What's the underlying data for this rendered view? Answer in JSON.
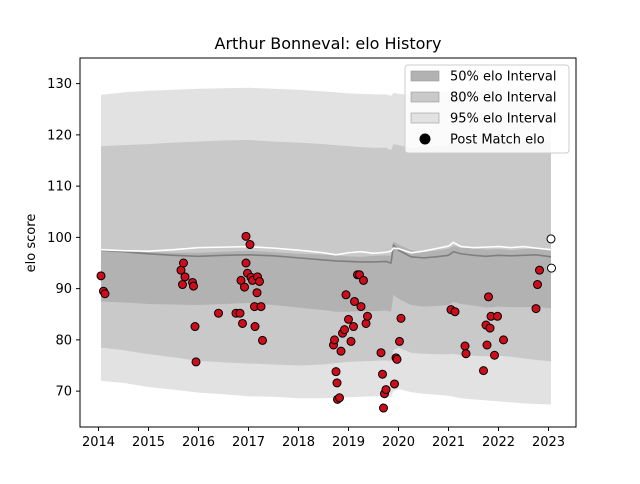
{
  "chart_data": {
    "type": "scatter",
    "title": "Arthur Bonneval: elo History",
    "xlabel": "",
    "ylabel": "elo score",
    "xlim": [
      2013.63,
      2023.55
    ],
    "ylim": [
      63,
      135
    ],
    "x_ticks": [
      2014,
      2015,
      2016,
      2017,
      2018,
      2019,
      2020,
      2021,
      2022,
      2023
    ],
    "y_ticks": [
      70,
      80,
      90,
      100,
      110,
      120,
      130
    ],
    "legend_position": "upper right",
    "grid": false,
    "colors": {
      "band50": "#b2b2b2",
      "band80": "#c9c9c9",
      "band95": "#e2e2e2",
      "pre_line": "#7f7f7f",
      "post_line": "#ffffff",
      "points": "#cc0e1b",
      "future_points": "#ffffff"
    },
    "legend": [
      {
        "label": "50% elo Interval",
        "kind": "band",
        "color_key": "band50"
      },
      {
        "label": "80% elo Interval",
        "kind": "band",
        "color_key": "band80"
      },
      {
        "label": "95% elo Interval",
        "kind": "band",
        "color_key": "band95"
      },
      {
        "label": "Post Match elo",
        "kind": "marker",
        "color_key": "points"
      }
    ],
    "line_x": [
      2014.05,
      2014.5,
      2015.0,
      2015.5,
      2016.0,
      2016.5,
      2017.0,
      2017.5,
      2018.0,
      2018.5,
      2018.75,
      2019.0,
      2019.25,
      2019.5,
      2019.75,
      2019.85,
      2019.9,
      2020.0,
      2020.25,
      2020.5,
      2020.75,
      2021.0,
      2021.1,
      2021.25,
      2021.5,
      2021.75,
      2022.0,
      2022.25,
      2022.5,
      2022.75,
      2023.05
    ],
    "pre_elo": [
      97.5,
      97.2,
      96.8,
      96.5,
      96.3,
      96.5,
      96.6,
      96.4,
      96.0,
      95.6,
      95.4,
      95.3,
      95.2,
      95.2,
      95.3,
      95.0,
      98.5,
      97.5,
      96.2,
      96.0,
      96.2,
      96.5,
      97.2,
      96.8,
      96.5,
      96.3,
      96.5,
      96.4,
      96.5,
      96.6,
      96.2
    ],
    "post_elo": [
      97.6,
      97.4,
      97.3,
      97.6,
      98.0,
      98.1,
      98.2,
      97.9,
      97.5,
      97.0,
      96.6,
      97.0,
      97.2,
      96.9,
      97.1,
      97.3,
      97.9,
      97.8,
      97.0,
      97.3,
      97.8,
      98.3,
      99.0,
      98.2,
      98.0,
      98.1,
      98.2,
      98.0,
      98.2,
      97.9,
      97.6
    ],
    "band50_upper": [
      97.7,
      97.4,
      97.2,
      97.0,
      97.0,
      97.2,
      97.4,
      97.1,
      96.8,
      96.6,
      96.5,
      96.3,
      96.2,
      96.4,
      96.5,
      96.4,
      99.2,
      98.6,
      97.5,
      97.2,
      97.4,
      97.8,
      98.3,
      98.0,
      97.8,
      97.6,
      97.7,
      97.5,
      97.7,
      97.8,
      97.5
    ],
    "band50_lower": [
      87.5,
      87.3,
      87.0,
      86.9,
      86.8,
      87.0,
      87.2,
      86.8,
      86.3,
      85.8,
      85.5,
      85.5,
      85.6,
      85.6,
      85.7,
      85.5,
      88.8,
      88.0,
      86.8,
      86.5,
      86.6,
      86.8,
      87.4,
      87.0,
      86.7,
      86.3,
      86.5,
      86.4,
      86.4,
      86.4,
      86.2
    ],
    "band80_upper": [
      117.8,
      118.0,
      118.2,
      118.5,
      118.7,
      118.9,
      119.0,
      118.7,
      118.5,
      118.2,
      118.0,
      117.8,
      117.6,
      117.5,
      117.5,
      117.0,
      118.2,
      118.0,
      117.5,
      117.6,
      117.8,
      118.1,
      118.5,
      118.2,
      118.3,
      118.5,
      118.6,
      118.7,
      118.8,
      119.0,
      118.8
    ],
    "band80_lower": [
      78.5,
      78.0,
      77.2,
      76.6,
      75.9,
      75.6,
      75.4,
      75.2,
      75.0,
      75.2,
      75.5,
      75.7,
      75.8,
      75.9,
      76.0,
      75.9,
      78.0,
      78.5,
      77.5,
      77.3,
      77.2,
      77.2,
      77.3,
      77.0,
      76.9,
      76.8,
      76.9,
      76.7,
      76.4,
      76.1,
      75.8
    ],
    "band95_upper": [
      127.8,
      128.3,
      128.6,
      128.8,
      129.0,
      129.1,
      129.2,
      129.0,
      128.8,
      128.5,
      128.3,
      128.1,
      128.0,
      127.9,
      127.9,
      127.6,
      128.2,
      128.0,
      127.8,
      127.9,
      128.1,
      128.4,
      128.7,
      128.5,
      128.6,
      128.7,
      128.8,
      128.9,
      129.0,
      129.2,
      129.0
    ],
    "band95_lower": [
      72.0,
      71.6,
      70.8,
      70.3,
      69.7,
      69.4,
      69.0,
      68.9,
      68.6,
      68.6,
      68.7,
      68.8,
      68.9,
      69.0,
      69.0,
      68.9,
      70.0,
      70.4,
      69.8,
      69.5,
      69.3,
      69.1,
      68.9,
      68.6,
      68.4,
      68.2,
      68.0,
      67.8,
      67.6,
      67.5,
      67.4
    ],
    "points": [
      {
        "x": 2014.05,
        "y": 92.5
      },
      {
        "x": 2014.1,
        "y": 89.5
      },
      {
        "x": 2014.13,
        "y": 89.0
      },
      {
        "x": 2015.65,
        "y": 93.6
      },
      {
        "x": 2015.68,
        "y": 90.8
      },
      {
        "x": 2015.7,
        "y": 95.0
      },
      {
        "x": 2015.73,
        "y": 92.3
      },
      {
        "x": 2015.88,
        "y": 91.2
      },
      {
        "x": 2015.9,
        "y": 90.5
      },
      {
        "x": 2015.93,
        "y": 82.6
      },
      {
        "x": 2015.95,
        "y": 75.7
      },
      {
        "x": 2016.4,
        "y": 85.2
      },
      {
        "x": 2016.75,
        "y": 85.2
      },
      {
        "x": 2016.83,
        "y": 85.2
      },
      {
        "x": 2016.85,
        "y": 91.6
      },
      {
        "x": 2016.88,
        "y": 83.2
      },
      {
        "x": 2016.92,
        "y": 90.3
      },
      {
        "x": 2016.95,
        "y": 95.0
      },
      {
        "x": 2016.95,
        "y": 100.2
      },
      {
        "x": 2016.98,
        "y": 93.0
      },
      {
        "x": 2017.03,
        "y": 98.6
      },
      {
        "x": 2017.05,
        "y": 92.2
      },
      {
        "x": 2017.08,
        "y": 91.6
      },
      {
        "x": 2017.12,
        "y": 86.5
      },
      {
        "x": 2017.13,
        "y": 82.6
      },
      {
        "x": 2017.17,
        "y": 89.2
      },
      {
        "x": 2017.18,
        "y": 92.3
      },
      {
        "x": 2017.22,
        "y": 91.4
      },
      {
        "x": 2017.25,
        "y": 86.5
      },
      {
        "x": 2017.28,
        "y": 79.9
      },
      {
        "x": 2018.7,
        "y": 79.0
      },
      {
        "x": 2018.72,
        "y": 80.0
      },
      {
        "x": 2018.75,
        "y": 73.8
      },
      {
        "x": 2018.77,
        "y": 71.6
      },
      {
        "x": 2018.78,
        "y": 68.4
      },
      {
        "x": 2018.82,
        "y": 68.7
      },
      {
        "x": 2018.85,
        "y": 77.8
      },
      {
        "x": 2018.88,
        "y": 81.3
      },
      {
        "x": 2018.92,
        "y": 82.0
      },
      {
        "x": 2018.95,
        "y": 88.8
      },
      {
        "x": 2019.0,
        "y": 84.0
      },
      {
        "x": 2019.05,
        "y": 79.7
      },
      {
        "x": 2019.1,
        "y": 82.6
      },
      {
        "x": 2019.12,
        "y": 87.5
      },
      {
        "x": 2019.18,
        "y": 92.7
      },
      {
        "x": 2019.22,
        "y": 92.7
      },
      {
        "x": 2019.25,
        "y": 86.5
      },
      {
        "x": 2019.3,
        "y": 91.6
      },
      {
        "x": 2019.35,
        "y": 83.2
      },
      {
        "x": 2019.38,
        "y": 84.6
      },
      {
        "x": 2019.65,
        "y": 77.5
      },
      {
        "x": 2019.68,
        "y": 73.3
      },
      {
        "x": 2019.7,
        "y": 66.7
      },
      {
        "x": 2019.72,
        "y": 69.5
      },
      {
        "x": 2019.75,
        "y": 70.3
      },
      {
        "x": 2019.92,
        "y": 71.4
      },
      {
        "x": 2019.95,
        "y": 76.5
      },
      {
        "x": 2019.97,
        "y": 76.2
      },
      {
        "x": 2020.02,
        "y": 79.7
      },
      {
        "x": 2020.05,
        "y": 84.2
      },
      {
        "x": 2021.05,
        "y": 85.9
      },
      {
        "x": 2021.13,
        "y": 85.5
      },
      {
        "x": 2021.33,
        "y": 78.8
      },
      {
        "x": 2021.35,
        "y": 77.3
      },
      {
        "x": 2021.7,
        "y": 74.0
      },
      {
        "x": 2021.75,
        "y": 82.9
      },
      {
        "x": 2021.77,
        "y": 79.0
      },
      {
        "x": 2021.8,
        "y": 88.4
      },
      {
        "x": 2021.83,
        "y": 82.3
      },
      {
        "x": 2021.85,
        "y": 84.6
      },
      {
        "x": 2021.92,
        "y": 77.0
      },
      {
        "x": 2021.98,
        "y": 84.6
      },
      {
        "x": 2022.1,
        "y": 80.0
      },
      {
        "x": 2022.75,
        "y": 86.1
      },
      {
        "x": 2022.78,
        "y": 90.8
      },
      {
        "x": 2022.82,
        "y": 93.6
      }
    ],
    "future_points": [
      {
        "x": 2023.05,
        "y": 99.7
      },
      {
        "x": 2023.06,
        "y": 94.0
      }
    ]
  }
}
